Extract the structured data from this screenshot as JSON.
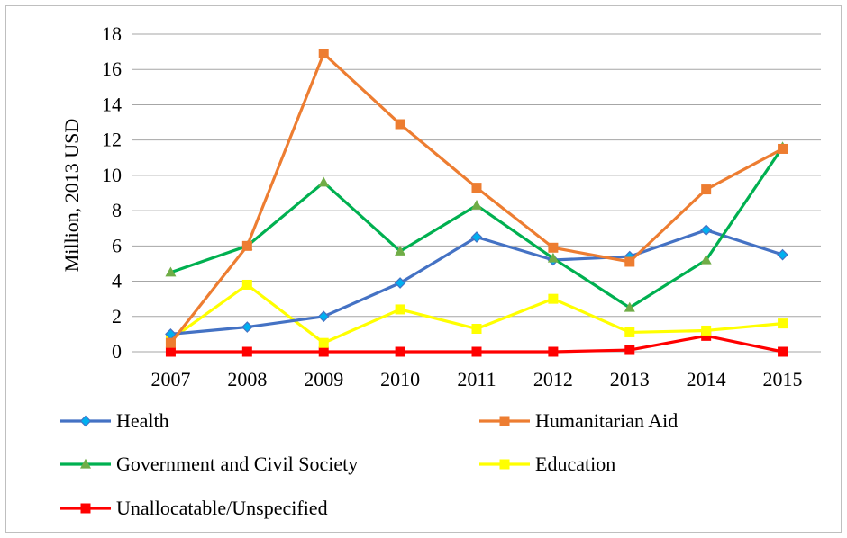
{
  "chart_data": {
    "type": "line",
    "title": "",
    "xlabel": "",
    "ylabel": "Million, 2013 USD",
    "ylim": [
      0,
      18
    ],
    "yticks": [
      0,
      2,
      4,
      6,
      8,
      10,
      12,
      14,
      16,
      18
    ],
    "grid": true,
    "legend_position": "bottom",
    "categories": [
      "2007",
      "2008",
      "2009",
      "2010",
      "2011",
      "2012",
      "2013",
      "2014",
      "2015"
    ],
    "series": [
      {
        "name": "Health",
        "color": "#4472c4",
        "marker": "diamond",
        "marker_color": "#00b0f0",
        "values": [
          1.0,
          1.4,
          2.0,
          3.9,
          6.5,
          5.2,
          5.4,
          6.9,
          5.5
        ]
      },
      {
        "name": "Humanitarian Aid",
        "color": "#ed7d31",
        "marker": "square",
        "marker_color": "#ed7d31",
        "values": [
          0.5,
          6.0,
          16.9,
          12.9,
          9.3,
          5.9,
          5.1,
          9.2,
          11.5
        ]
      },
      {
        "name": "Government and Civil Society",
        "color": "#00b050",
        "marker": "triangle",
        "marker_color": "#70ad47",
        "values": [
          4.5,
          6.0,
          9.6,
          5.7,
          8.3,
          5.3,
          2.5,
          5.2,
          11.6
        ]
      },
      {
        "name": "Education",
        "color": "#ffff00",
        "marker": "square",
        "marker_color": "#ffff00",
        "values": [
          0.7,
          3.8,
          0.5,
          2.4,
          1.3,
          3.0,
          1.1,
          1.2,
          1.6
        ]
      },
      {
        "name": "Unallocatable/Unspecified",
        "color": "#ff0000",
        "marker": "square",
        "marker_color": "#ff0000",
        "values": [
          0.0,
          0.0,
          0.0,
          0.0,
          0.0,
          0.0,
          0.1,
          0.9,
          0.0
        ]
      }
    ]
  }
}
